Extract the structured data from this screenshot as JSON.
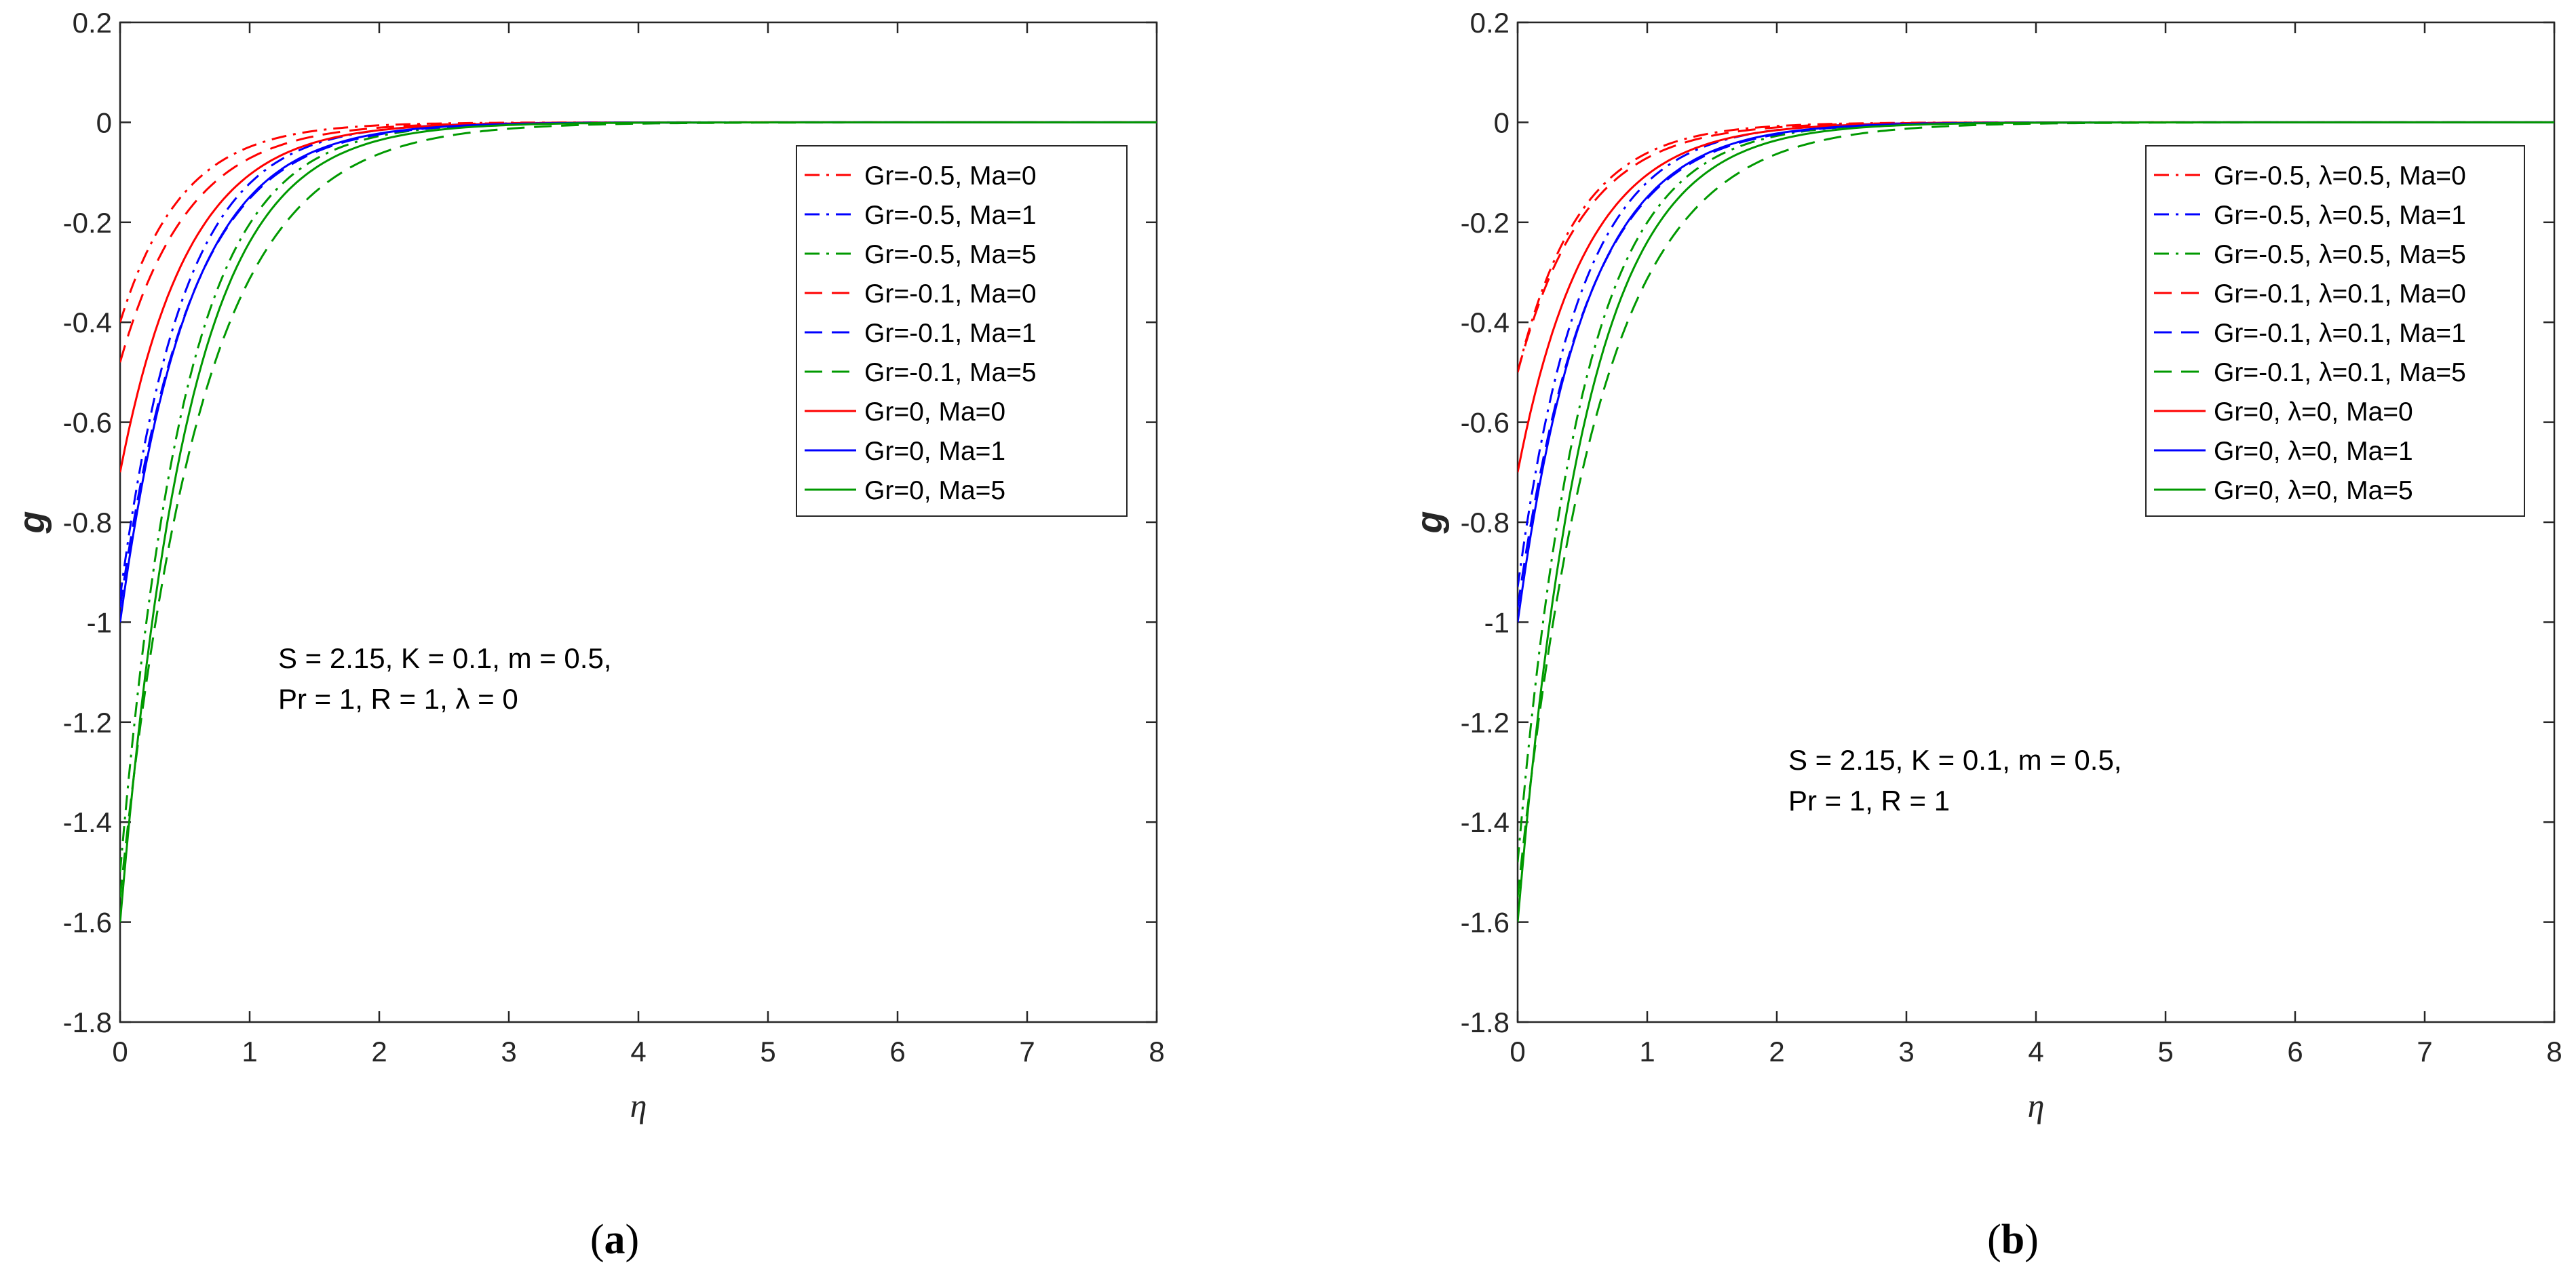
{
  "panels": [
    {
      "caption": "(a)",
      "caption_letter": "a",
      "annotation_lines": [
        "S = 2.15, K = 0.1, m = 0.5,",
        "Pr = 1, R = 1, λ = 0"
      ],
      "chart_data": {
        "type": "line",
        "xlabel": "η",
        "ylabel": "g",
        "xlim": [
          0,
          8
        ],
        "ylim": [
          -1.8,
          0.2
        ],
        "xticks": [
          "0",
          "1",
          "2",
          "3",
          "4",
          "5",
          "6",
          "7",
          "8"
        ],
        "yticks": [
          "0.2",
          "0",
          "-0.2",
          "-0.4",
          "-0.6",
          "-0.8",
          "-1",
          "-1.2",
          "-1.4",
          "-1.6",
          "-1.8"
        ],
        "grid": false,
        "legend_position": "top-right",
        "series": [
          {
            "name": "Gr=-0.5, Ma=0",
            "color": "#ff0000",
            "dash": "dashdot",
            "y0": -0.4,
            "decay": 2.1
          },
          {
            "name": "Gr=-0.5, Ma=1",
            "color": "#0000ff",
            "dash": "dashdot",
            "y0": -0.95,
            "decay": 2.05
          },
          {
            "name": "Gr=-0.5, Ma=5",
            "color": "#009900",
            "dash": "dashdot",
            "y0": -1.5,
            "decay": 2.0
          },
          {
            "name": "Gr=-0.1, Ma=0",
            "color": "#ff0000",
            "dash": "dash",
            "y0": -0.48,
            "decay": 1.9
          },
          {
            "name": "Gr=-0.1, Ma=1",
            "color": "#0000ff",
            "dash": "dash",
            "y0": -0.97,
            "decay": 1.85
          },
          {
            "name": "Gr=-0.1, Ma=5",
            "color": "#009900",
            "dash": "dash",
            "y0": -1.55,
            "decay": 1.6
          },
          {
            "name": "Gr=0, Ma=0",
            "color": "#ff0000",
            "dash": "solid",
            "y0": -0.7,
            "decay": 1.9
          },
          {
            "name": "Gr=0, Ma=1",
            "color": "#0000ff",
            "dash": "solid",
            "y0": -1.0,
            "decay": 1.9
          },
          {
            "name": "Gr=0, Ma=5",
            "color": "#009900",
            "dash": "solid",
            "y0": -1.6,
            "decay": 1.9
          }
        ]
      }
    },
    {
      "caption": "(b)",
      "caption_letter": "b",
      "annotation_lines": [
        "S = 2.15, K = 0.1, m = 0.5,",
        "Pr = 1, R = 1"
      ],
      "chart_data": {
        "type": "line",
        "xlabel": "η",
        "ylabel": "g",
        "xlim": [
          0,
          8
        ],
        "ylim": [
          -1.8,
          0.2
        ],
        "xticks": [
          "0",
          "1",
          "2",
          "3",
          "4",
          "5",
          "6",
          "7",
          "8"
        ],
        "yticks": [
          "0.2",
          "0",
          "-0.2",
          "-0.4",
          "-0.6",
          "-0.8",
          "-1",
          "-1.2",
          "-1.4",
          "-1.6",
          "-1.8"
        ],
        "grid": false,
        "legend_position": "top-right",
        "series": [
          {
            "name": "Gr=-0.5, λ=0.5, Ma=0",
            "color": "#ff0000",
            "dash": "dashdot",
            "y0": -0.5,
            "decay": 2.1
          },
          {
            "name": "Gr=-0.5, λ=0.5, Ma=1",
            "color": "#0000ff",
            "dash": "dashdot",
            "y0": -0.93,
            "decay": 2.05
          },
          {
            "name": "Gr=-0.5, λ=0.5, Ma=5",
            "color": "#009900",
            "dash": "dashdot",
            "y0": -1.48,
            "decay": 2.0
          },
          {
            "name": "Gr=-0.1, λ=0.1, Ma=0",
            "color": "#ff0000",
            "dash": "dash",
            "y0": -0.5,
            "decay": 1.95
          },
          {
            "name": "Gr=-0.1, λ=0.1, Ma=1",
            "color": "#0000ff",
            "dash": "dash",
            "y0": -0.97,
            "decay": 1.85
          },
          {
            "name": "Gr=-0.1, λ=0.1, Ma=5",
            "color": "#009900",
            "dash": "dash",
            "y0": -1.55,
            "decay": 1.6
          },
          {
            "name": "Gr=0, λ=0, Ma=0",
            "color": "#ff0000",
            "dash": "solid",
            "y0": -0.7,
            "decay": 1.9
          },
          {
            "name": "Gr=0, λ=0, Ma=1",
            "color": "#0000ff",
            "dash": "solid",
            "y0": -1.0,
            "decay": 1.9
          },
          {
            "name": "Gr=0, λ=0, Ma=5",
            "color": "#009900",
            "dash": "solid",
            "y0": -1.6,
            "decay": 1.9
          }
        ]
      }
    }
  ]
}
